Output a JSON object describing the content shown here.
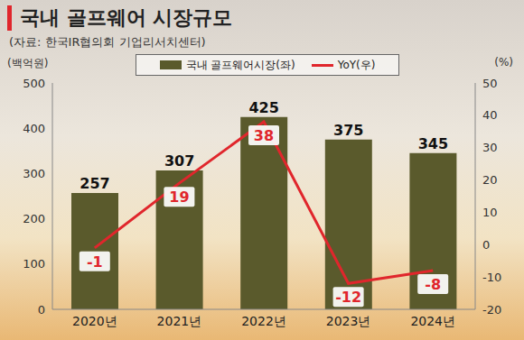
{
  "chart_data": {
    "type": "bar",
    "title": "국내 골프웨어 시장규모",
    "subtitle": "(자료: 한국IR협의회 기업리서치센터)",
    "y_label": "(백억원)",
    "y2_label": "(%)",
    "categories": [
      "2020년",
      "2021년",
      "2022년",
      "2023년",
      "2024년"
    ],
    "series": [
      {
        "name": "국내 골프웨어시장(좌)",
        "type": "bar",
        "color": "#5a5a2c",
        "values": [
          257,
          307,
          425,
          375,
          345
        ]
      },
      {
        "name": "YoY(우)",
        "type": "line",
        "axis": "y2",
        "color": "#e0262c",
        "values": [
          -1,
          19,
          38,
          -12,
          -8
        ]
      }
    ],
    "ylim": [
      0,
      500
    ],
    "yticks": [
      0,
      100,
      200,
      300,
      400,
      500
    ],
    "y2lim": [
      -20,
      50
    ],
    "y2ticks": [
      -20,
      -10,
      0,
      10,
      20,
      30,
      40,
      50
    ],
    "data_labels": true,
    "grid": false,
    "legend": "top"
  }
}
